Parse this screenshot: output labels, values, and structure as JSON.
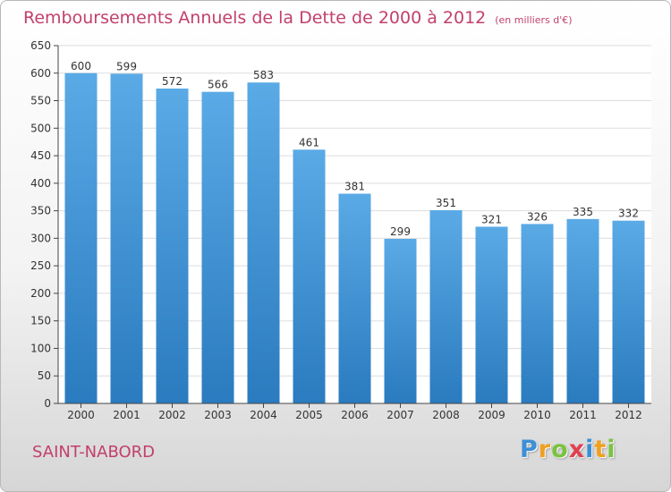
{
  "chart_data": {
    "type": "bar",
    "title": "Remboursements Annuels de la Dette de 2000 à 2012",
    "subtitle": "(en milliers d'€)",
    "categories": [
      "2000",
      "2001",
      "2002",
      "2003",
      "2004",
      "2005",
      "2006",
      "2007",
      "2008",
      "2009",
      "2010",
      "2011",
      "2012"
    ],
    "values": [
      600,
      599,
      572,
      566,
      583,
      461,
      381,
      299,
      351,
      321,
      326,
      335,
      332
    ],
    "ylim": [
      0,
      650
    ],
    "yticks": [
      0,
      50,
      100,
      150,
      200,
      250,
      300,
      350,
      400,
      450,
      500,
      550,
      600,
      650
    ],
    "xlabel": "",
    "ylabel": "",
    "grid": true,
    "bar_color_top": "#5aaae6",
    "bar_color_bottom": "#2a7bbf"
  },
  "commune": "SAINT-NABORD",
  "brand": {
    "letters": [
      {
        "char": "P",
        "color": "#3b8fd6"
      },
      {
        "char": "r",
        "color": "#f0a020"
      },
      {
        "char": "o",
        "color": "#7cc242"
      },
      {
        "char": "x",
        "color": "#e04050"
      },
      {
        "char": "i",
        "color": "#3b8fd6"
      },
      {
        "char": "t",
        "color": "#f0a020"
      },
      {
        "char": "i",
        "color": "#7cc242"
      }
    ]
  },
  "colors": {
    "accent": "#c2406a",
    "grid": "#dddddd",
    "axis": "#444444"
  }
}
